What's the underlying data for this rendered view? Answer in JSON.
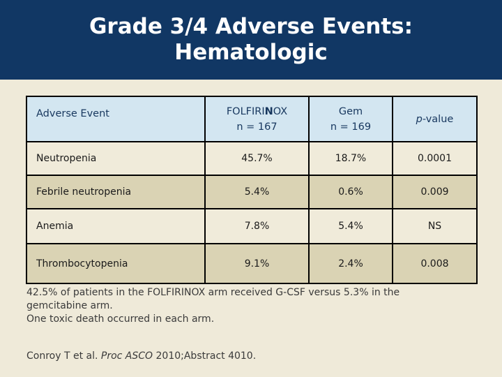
{
  "slide": {
    "title_line1": "Grade 3/4 Adverse Events:",
    "title_line2": "Hematologic"
  },
  "table": {
    "header": {
      "col1": "Adverse Event",
      "col2_line1_pre": "FOLFIRI",
      "col2_line1_bold": "N",
      "col2_line1_post": "OX",
      "col2_line2": "n = 167",
      "col3_line1": "Gem",
      "col3_line2": "n = 169",
      "col4_italic": "p",
      "col4_rest": "-value"
    },
    "rows": [
      {
        "event": "Neutropenia",
        "folfirinox": "45.7%",
        "gem": "18.7%",
        "p_value": "0.0001"
      },
      {
        "event": "Febrile neutropenia",
        "folfirinox": "5.4%",
        "gem": "0.6%",
        "p_value": "0.009"
      },
      {
        "event": "Anemia",
        "folfirinox": "7.8%",
        "gem": "5.4%",
        "p_value": "NS"
      },
      {
        "event": "Thrombocytopenia",
        "folfirinox": "9.1%",
        "gem": "2.4%",
        "p_value": "0.008"
      }
    ]
  },
  "notes": {
    "line1": "42.5% of patients in the FOLFIRINOX arm received G-CSF versus 5.3% in the gemcitabine arm.",
    "line2": "One toxic death occurred in each arm."
  },
  "citation": {
    "pre": "Conroy T et al. ",
    "italic": "Proc ASCO",
    "post": " 2010;Abstract 4010."
  },
  "colors": {
    "title_band_bg": "#113764",
    "title_text": "#FFFFFF",
    "slide_bg": "#EFEAD9",
    "header_cell_bg": "#D3E6F1",
    "header_text": "#17375E",
    "row_cream_bg": "#F0EBDA",
    "row_tan_bg": "#DAD3B4",
    "table_border": "#000000",
    "body_text": "#3A3A3A"
  }
}
